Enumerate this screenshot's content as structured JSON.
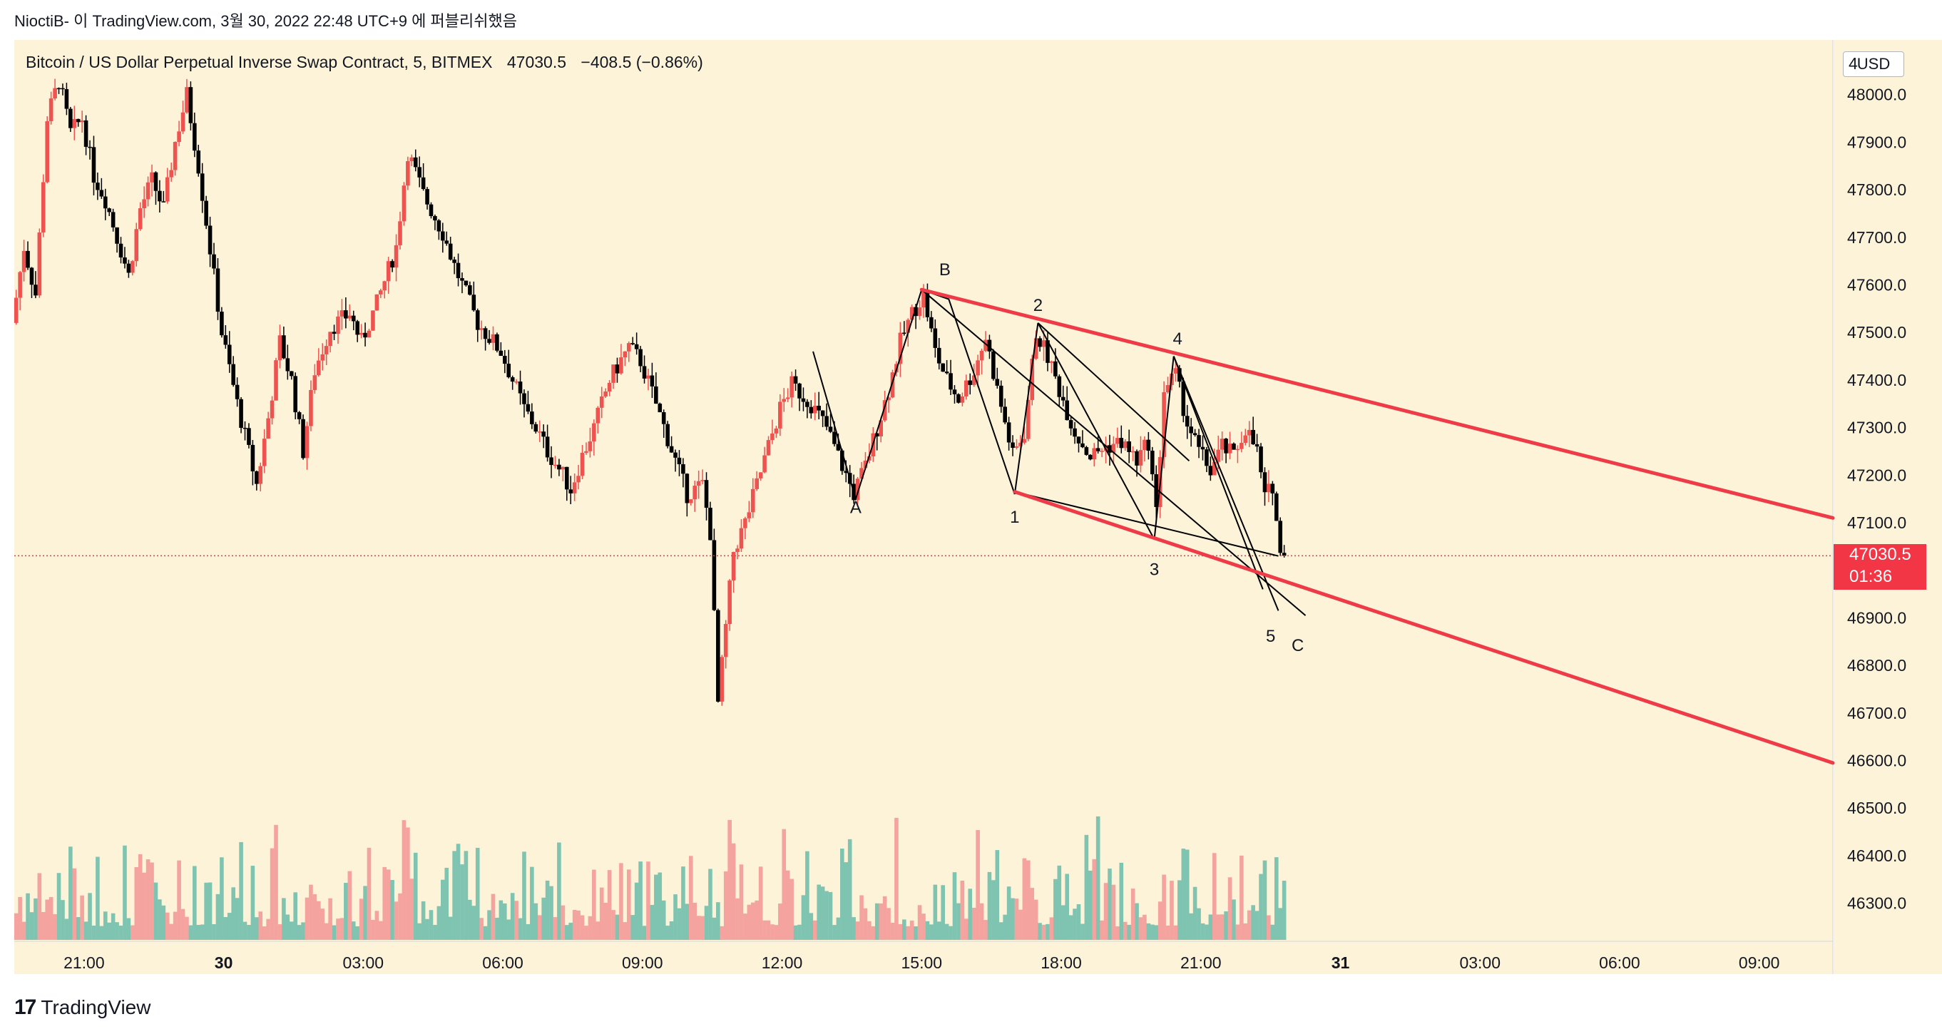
{
  "header": {
    "attribution": "NioctiB- 이 TradingView.com, 3월 30, 2022 22:48 UTC+9 에 퍼블리쉬했음"
  },
  "legend": {
    "symbol": "Bitcoin / US Dollar Perpetual Inverse Swap Contract, 5, BITMEX",
    "last": "47030.5",
    "change": "−408.5 (−0.86%)"
  },
  "price_scale": {
    "currency": "USD",
    "partial_top_label": "4"
  },
  "current_price": {
    "price": "47030.5",
    "countdown": "01:36"
  },
  "footer": {
    "brand": "TradingView",
    "logo": "17"
  },
  "colors": {
    "up": "#ef5350",
    "down": "#000000",
    "background": "#fdf3d9",
    "channel": "#ef3b47",
    "vol_up": "#f4a39f",
    "vol_down": "#7fc3b1"
  },
  "chart_data": {
    "type": "candlestick",
    "timeframe_minutes": 5,
    "y_range": [
      46220,
      48100
    ],
    "y_ticks": [
      46300,
      46400,
      46500,
      46600,
      46700,
      46800,
      46900,
      47100,
      47200,
      47300,
      47400,
      47500,
      47600,
      47700,
      47800,
      47900,
      48000
    ],
    "y_tick_labels": [
      "46300.0",
      "46400.0",
      "46500.0",
      "46600.0",
      "46700.0",
      "46800.0",
      "46900.0",
      "47100.0",
      "47200.0",
      "47300.0",
      "47400.0",
      "47500.0",
      "47600.0",
      "47700.0",
      "47800.0",
      "47900.0",
      "48000.0"
    ],
    "x_ticks": [
      {
        "t": "2022-03-29 21:00",
        "label": "21:00"
      },
      {
        "t": "2022-03-30 00:00",
        "label": "30",
        "bold": true
      },
      {
        "t": "2022-03-30 03:00",
        "label": "03:00"
      },
      {
        "t": "2022-03-30 06:00",
        "label": "06:00"
      },
      {
        "t": "2022-03-30 09:00",
        "label": "09:00"
      },
      {
        "t": "2022-03-30 12:00",
        "label": "12:00"
      },
      {
        "t": "2022-03-30 15:00",
        "label": "15:00"
      },
      {
        "t": "2022-03-30 18:00",
        "label": "18:00"
      },
      {
        "t": "2022-03-30 21:00",
        "label": "21:00"
      },
      {
        "t": "2022-03-31 00:00",
        "label": "31",
        "bold": true
      },
      {
        "t": "2022-03-31 03:00",
        "label": "03:00"
      },
      {
        "t": "2022-03-31 06:00",
        "label": "06:00"
      },
      {
        "t": "2022-03-31 09:00",
        "label": "09:00"
      }
    ],
    "x_range": [
      "2022-03-29 19:30",
      "2022-03-31 10:35"
    ],
    "price_path": [
      [
        "2022-03-29 19:30",
        47520
      ],
      [
        "2022-03-29 19:45",
        47680
      ],
      [
        "2022-03-29 20:00",
        47580
      ],
      [
        "2022-03-29 20:15",
        47950
      ],
      [
        "2022-03-29 20:30",
        48030
      ],
      [
        "2022-03-29 20:45",
        47920
      ],
      [
        "2022-03-29 21:00",
        47950
      ],
      [
        "2022-03-29 21:15",
        47830
      ],
      [
        "2022-03-29 21:30",
        47780
      ],
      [
        "2022-03-29 21:45",
        47700
      ],
      [
        "2022-03-29 22:00",
        47620
      ],
      [
        "2022-03-29 22:15",
        47760
      ],
      [
        "2022-03-29 22:30",
        47820
      ],
      [
        "2022-03-29 22:45",
        47760
      ],
      [
        "2022-03-29 23:00",
        47900
      ],
      [
        "2022-03-29 23:15",
        48000
      ],
      [
        "2022-03-29 23:30",
        47850
      ],
      [
        "2022-03-30 00:00",
        47500
      ],
      [
        "2022-03-30 00:20",
        47350
      ],
      [
        "2022-03-30 00:45",
        47180
      ],
      [
        "2022-03-30 01:00",
        47320
      ],
      [
        "2022-03-30 01:15",
        47480
      ],
      [
        "2022-03-30 01:30",
        47400
      ],
      [
        "2022-03-30 01:45",
        47250
      ],
      [
        "2022-03-30 02:00",
        47420
      ],
      [
        "2022-03-30 02:20",
        47510
      ],
      [
        "2022-03-30 02:45",
        47540
      ],
      [
        "2022-03-30 03:00",
        47480
      ],
      [
        "2022-03-30 03:20",
        47560
      ],
      [
        "2022-03-30 03:45",
        47680
      ],
      [
        "2022-03-30 04:00",
        47880
      ],
      [
        "2022-03-30 04:20",
        47790
      ],
      [
        "2022-03-30 04:45",
        47710
      ],
      [
        "2022-03-30 05:00",
        47640
      ],
      [
        "2022-03-30 05:30",
        47520
      ],
      [
        "2022-03-30 06:00",
        47460
      ],
      [
        "2022-03-30 06:30",
        47340
      ],
      [
        "2022-03-30 06:45",
        47300
      ],
      [
        "2022-03-30 07:00",
        47250
      ],
      [
        "2022-03-30 07:20",
        47200
      ],
      [
        "2022-03-30 07:30",
        47170
      ],
      [
        "2022-03-30 07:45",
        47240
      ],
      [
        "2022-03-30 08:00",
        47300
      ],
      [
        "2022-03-30 08:20",
        47400
      ],
      [
        "2022-03-30 08:45",
        47470
      ],
      [
        "2022-03-30 09:00",
        47440
      ],
      [
        "2022-03-30 09:20",
        47350
      ],
      [
        "2022-03-30 09:45",
        47230
      ],
      [
        "2022-03-30 10:00",
        47160
      ],
      [
        "2022-03-30 10:20",
        47180
      ],
      [
        "2022-03-30 10:30",
        47080
      ],
      [
        "2022-03-30 10:40",
        46720
      ],
      [
        "2022-03-30 10:50",
        46880
      ],
      [
        "2022-03-30 11:00",
        47040
      ],
      [
        "2022-03-30 11:15",
        47100
      ],
      [
        "2022-03-30 11:30",
        47180
      ],
      [
        "2022-03-30 11:45",
        47260
      ],
      [
        "2022-03-30 12:00",
        47340
      ],
      [
        "2022-03-30 12:15",
        47390
      ],
      [
        "2022-03-30 12:40",
        47350
      ],
      [
        "2022-03-30 13:00",
        47300
      ],
      [
        "2022-03-30 13:20",
        47220
      ],
      [
        "2022-03-30 13:35",
        47160
      ],
      [
        "2022-03-30 13:50",
        47220
      ],
      [
        "2022-03-30 14:05",
        47300
      ],
      [
        "2022-03-30 14:20",
        47380
      ],
      [
        "2022-03-30 14:35",
        47480
      ],
      [
        "2022-03-30 14:50",
        47540
      ],
      [
        "2022-03-30 15:05",
        47580
      ],
      [
        "2022-03-30 15:20",
        47460
      ],
      [
        "2022-03-30 15:35",
        47400
      ],
      [
        "2022-03-30 15:50",
        47360
      ],
      [
        "2022-03-30 16:10",
        47420
      ],
      [
        "2022-03-30 16:25",
        47490
      ],
      [
        "2022-03-30 16:40",
        47380
      ],
      [
        "2022-03-30 17:00",
        47240
      ],
      [
        "2022-03-30 17:15",
        47290
      ],
      [
        "2022-03-30 17:30",
        47500
      ],
      [
        "2022-03-30 17:45",
        47450
      ],
      [
        "2022-03-30 18:00",
        47380
      ],
      [
        "2022-03-30 18:20",
        47290
      ],
      [
        "2022-03-30 18:40",
        47240
      ],
      [
        "2022-03-30 19:00",
        47260
      ],
      [
        "2022-03-30 19:20",
        47270
      ],
      [
        "2022-03-30 19:40",
        47230
      ],
      [
        "2022-03-30 19:55",
        47270
      ],
      [
        "2022-03-30 20:05",
        47120
      ],
      [
        "2022-03-30 20:15",
        47380
      ],
      [
        "2022-03-30 20:30",
        47410
      ],
      [
        "2022-03-30 20:45",
        47310
      ],
      [
        "2022-03-30 21:00",
        47250
      ],
      [
        "2022-03-30 21:15",
        47210
      ],
      [
        "2022-03-30 21:30",
        47260
      ],
      [
        "2022-03-30 21:45",
        47240
      ],
      [
        "2022-03-30 22:00",
        47300
      ],
      [
        "2022-03-30 22:15",
        47250
      ],
      [
        "2022-03-30 22:25",
        47150
      ],
      [
        "2022-03-30 22:35",
        47180
      ],
      [
        "2022-03-30 22:45",
        47030
      ]
    ],
    "volume_scale_max": 180,
    "channel_lines": [
      {
        "from": [
          "2022-03-30 15:00",
          47590
        ],
        "to": [
          "2022-03-31 10:35",
          47110
        ],
        "color": "#ef3b47",
        "width": 5
      },
      {
        "from": [
          "2022-03-30 17:00",
          47165
        ],
        "to": [
          "2022-03-31 10:35",
          46595
        ],
        "color": "#ef3b47",
        "width": 5
      }
    ],
    "wave_lines": [
      [
        [
          "2022-03-30 12:40",
          47460
        ],
        [
          "2022-03-30 13:35",
          47150
        ],
        [
          "2022-03-30 15:00",
          47590
        ]
      ],
      [
        [
          "2022-03-30 15:00",
          47590
        ],
        [
          "2022-03-30 15:35",
          47570
        ],
        [
          "2022-03-30 17:00",
          47160
        ]
      ],
      [
        [
          "2022-03-30 17:00",
          47160
        ],
        [
          "2022-03-30 17:30",
          47520
        ]
      ],
      [
        [
          "2022-03-30 17:30",
          47520
        ],
        [
          "2022-03-30 20:00",
          47065
        ]
      ],
      [
        [
          "2022-03-30 20:00",
          47065
        ],
        [
          "2022-03-30 20:25",
          47450
        ]
      ],
      [
        [
          "2022-03-30 20:25",
          47450
        ],
        [
          "2022-03-30 22:40",
          46915
        ]
      ],
      [
        [
          "2022-03-30 15:00",
          47590
        ],
        [
          "2022-03-30 23:15",
          46905
        ]
      ],
      [
        [
          "2022-03-30 17:00",
          47165
        ],
        [
          "2022-03-30 22:40",
          47030
        ]
      ],
      [
        [
          "2022-03-30 17:30",
          47520
        ],
        [
          "2022-03-30 20:45",
          47230
        ]
      ],
      [
        [
          "2022-03-30 20:25",
          47450
        ],
        [
          "2022-03-30 22:20",
          46960
        ]
      ]
    ],
    "wave_labels": [
      {
        "text": "A",
        "t": "2022-03-30 13:35",
        "price": 47120
      },
      {
        "text": "B",
        "t": "2022-03-30 15:30",
        "price": 47620
      },
      {
        "text": "1",
        "t": "2022-03-30 17:00",
        "price": 47100
      },
      {
        "text": "2",
        "t": "2022-03-30 17:30",
        "price": 47545
      },
      {
        "text": "3",
        "t": "2022-03-30 20:00",
        "price": 46990
      },
      {
        "text": "4",
        "t": "2022-03-30 20:30",
        "price": 47475
      },
      {
        "text": "5",
        "t": "2022-03-30 22:30",
        "price": 46850
      },
      {
        "text": "C",
        "t": "2022-03-30 23:05",
        "price": 46830
      }
    ],
    "current_price_line": 47030.5
  }
}
